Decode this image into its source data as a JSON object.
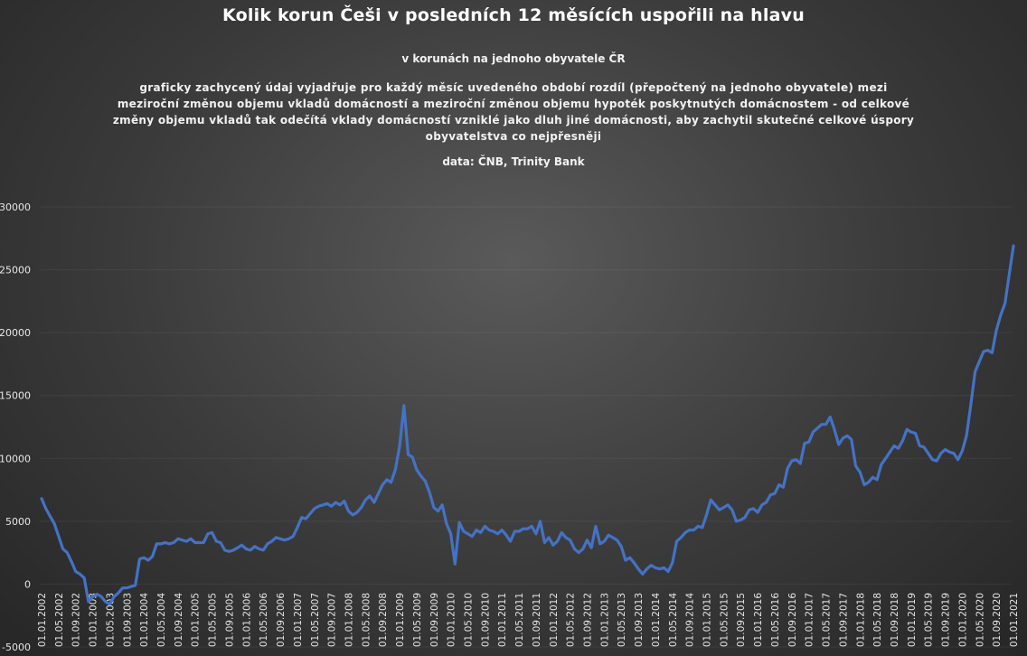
{
  "chart_data": {
    "type": "line",
    "title": "Kolik korun Češi v posledních 12 měsících uspořili na hlavu",
    "subtitle": "v korunách na jednoho obyvatele ČR",
    "description": "graficky zachycený údaj vyjadřuje pro každý měsíc uvedeného období rozdíl (přepočtený na jednoho obyvatele) mezi meziroční změnou objemu vkladů domácností a meziroční změnou objemu hypoték poskytnutých domácnostem - od celkové změny objemu vkladů tak odečítá vklady domácností vzniklé jako dluh jiné domácnosti, aby zachytil skutečné celkové úspory obyvatelstva co nejpřesněji",
    "source": "data: ČNB, Trinity Bank",
    "xlabel": "",
    "ylabel": "",
    "ylim": [
      -5000,
      30000
    ],
    "yticks": [
      -5000,
      0,
      5000,
      10000,
      15000,
      20000,
      25000,
      30000
    ],
    "grid": false,
    "legend": "none",
    "line_color": "#4472c4",
    "x_tick_labels": [
      "01.01.2002",
      "01.05.2002",
      "01.09.2002",
      "01.01.2003",
      "01.05.2003",
      "01.09.2003",
      "01.01.2004",
      "01.05.2004",
      "01.09.2004",
      "01.01.2005",
      "01.05.2005",
      "01.09.2005",
      "01.01.2006",
      "01.05.2006",
      "01.09.2006",
      "01.01.2007",
      "01.05.2007",
      "01.09.2007",
      "01.01.2008",
      "01.05.2008",
      "01.09.2008",
      "01.01.2009",
      "01.05.2009",
      "01.09.2009",
      "01.01.2010",
      "01.05.2010",
      "01.09.2010",
      "01.01.2011",
      "01.05.2011",
      "01.09.2011",
      "01.01.2012",
      "01.05.2012",
      "01.09.2012",
      "01.01.2013",
      "01.05.2013",
      "01.09.2013",
      "01.01.2014",
      "01.05.2014",
      "01.09.2014",
      "01.01.2015",
      "01.05.2015",
      "01.09.2015",
      "01.01.2016",
      "01.05.2016",
      "01.09.2016",
      "01.01.2017",
      "01.05.2017",
      "01.09.2017",
      "01.01.2018",
      "01.05.2018",
      "01.09.2018",
      "01.01.2019",
      "01.05.2019",
      "01.09.2019",
      "01.01.2020",
      "01.05.2020",
      "01.09.2020",
      "01.01.2021"
    ],
    "series": [
      {
        "values": [
          6800,
          6000,
          5400,
          4800,
          3800,
          2800,
          2500,
          1800,
          1000,
          800,
          500,
          -1400,
          -1000,
          -800,
          -1000,
          -1400,
          -1600,
          -1000,
          -700,
          -300,
          -300,
          -200,
          -100,
          2000,
          2100,
          1900,
          2200,
          3200,
          3200,
          3300,
          3200,
          3300,
          3600,
          3500,
          3400,
          3600,
          3300,
          3300,
          3300,
          4000,
          4100,
          3400,
          3300,
          2700,
          2600,
          2700,
          2900,
          3100,
          2800,
          2700,
          3000,
          2800,
          2700,
          3200,
          3400,
          3700,
          3600,
          3500,
          3600,
          3800,
          4500,
          5300,
          5200,
          5600,
          6000,
          6200,
          6300,
          6400,
          6200,
          6500,
          6300,
          6600,
          5800,
          5500,
          5700,
          6100,
          6700,
          7000,
          6500,
          7200,
          7900,
          8300,
          8100,
          9100,
          11000,
          14200,
          10300,
          10100,
          9100,
          8600,
          8200,
          7300,
          6100,
          5800,
          6300,
          4800,
          4000,
          1600,
          4900,
          4200,
          4000,
          3800,
          4300,
          4100,
          4600,
          4300,
          4200,
          4000,
          4300,
          3900,
          3400,
          4200,
          4200,
          4400,
          4400,
          4600,
          4000,
          5000,
          3300,
          3700,
          3100,
          3400,
          4100,
          3700,
          3500,
          2800,
          2500,
          2800,
          3500,
          2900,
          4600,
          3200,
          3400,
          3900,
          3700,
          3500,
          3000,
          1900,
          2100,
          1700,
          1200,
          800,
          1200,
          1500,
          1300,
          1200,
          1300,
          1000,
          1700,
          3400,
          3700,
          4100,
          4300,
          4300,
          4600,
          4500,
          5500,
          6700,
          6300,
          5900,
          6100,
          6300,
          5900,
          5000,
          5100,
          5300,
          5900,
          6000,
          5700,
          6300,
          6500,
          7100,
          7200,
          7900,
          7700,
          9200,
          9800,
          9900,
          9600,
          11200,
          11300,
          12100,
          12400,
          12700,
          12700,
          13300,
          12300,
          11100,
          11600,
          11800,
          11500,
          9400,
          8900,
          7900,
          8100,
          8500,
          8300,
          9500,
          10000,
          10500,
          11000,
          10800,
          11400,
          12300,
          12100,
          12000,
          11000,
          10900,
          10400,
          9900,
          9800,
          10400,
          10700,
          10500,
          10400,
          9900,
          10600,
          11800,
          14300,
          16900,
          17700,
          18500,
          18600,
          18400,
          20200,
          21400,
          22300,
          24600,
          26900
        ]
      }
    ]
  }
}
